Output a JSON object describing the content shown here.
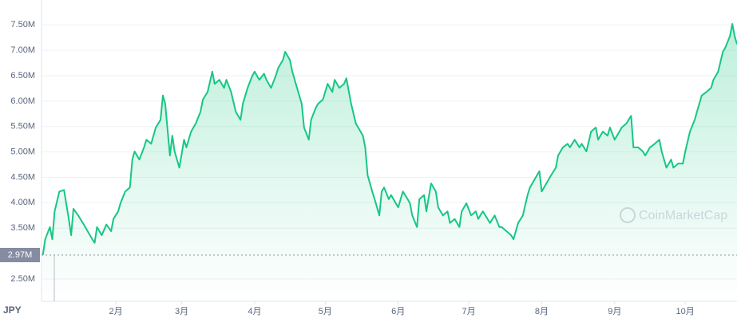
{
  "chart_data": {
    "type": "line",
    "currency": "JPY",
    "watermark": "CoinMarketCap",
    "reference": {
      "value": 2970000,
      "label": "2.97M"
    },
    "xlim": [
      0,
      295
    ],
    "xticks": [
      {
        "value": 31,
        "label": "2月"
      },
      {
        "value": 59,
        "label": "3月"
      },
      {
        "value": 90,
        "label": "4月"
      },
      {
        "value": 120,
        "label": "5月"
      },
      {
        "value": 151,
        "label": "6月"
      },
      {
        "value": 181,
        "label": "7月"
      },
      {
        "value": 212,
        "label": "8月"
      },
      {
        "value": 243,
        "label": "9月"
      },
      {
        "value": 273,
        "label": "10月"
      }
    ],
    "ylim": [
      2060000,
      7990000
    ],
    "yticks": [
      {
        "value": 2500000,
        "label": "2.50M"
      },
      {
        "value": 3500000,
        "label": "3.50M"
      },
      {
        "value": 4000000,
        "label": "4.00M"
      },
      {
        "value": 4500000,
        "label": "4.50M"
      },
      {
        "value": 5000000,
        "label": "5.00M"
      },
      {
        "value": 5500000,
        "label": "5.50M"
      },
      {
        "value": 6000000,
        "label": "6.00M"
      },
      {
        "value": 6500000,
        "label": "6.50M"
      },
      {
        "value": 7000000,
        "label": "7.00M"
      },
      {
        "value": 7500000,
        "label": "7.50M"
      }
    ],
    "grid": true,
    "color": "#16c784",
    "x": [
      0,
      1,
      3,
      4,
      5,
      7,
      9,
      11,
      12,
      13,
      15,
      17,
      19,
      21,
      22,
      23,
      25,
      27,
      29,
      30,
      32,
      33,
      35,
      37,
      38,
      39,
      41,
      43,
      44,
      46,
      48,
      50,
      51,
      52,
      54,
      55,
      56,
      58,
      60,
      61,
      63,
      65,
      67,
      68,
      70,
      72,
      73,
      75,
      77,
      78,
      80,
      82,
      84,
      85,
      87,
      89,
      90,
      92,
      94,
      95,
      97,
      99,
      100,
      102,
      103,
      105,
      106,
      108,
      110,
      111,
      113,
      114,
      116,
      117,
      119,
      121,
      123,
      124,
      126,
      128,
      129,
      131,
      133,
      134,
      136,
      137,
      138,
      140,
      141,
      143,
      144,
      145,
      147,
      148,
      150,
      151,
      153,
      155,
      156,
      157,
      159,
      160,
      162,
      163,
      165,
      167,
      168,
      170,
      172,
      173,
      175,
      177,
      178,
      180,
      182,
      184,
      185,
      187,
      189,
      190,
      192,
      194,
      195,
      197,
      199,
      200,
      202,
      204,
      206,
      207,
      209,
      211,
      212,
      214,
      216,
      218,
      219,
      221,
      223,
      224,
      226,
      228,
      229,
      231,
      233,
      235,
      236,
      238,
      240,
      241,
      243,
      245,
      246,
      248,
      250,
      251,
      253,
      255,
      256,
      258,
      260,
      262,
      263,
      265,
      267,
      268,
      270,
      272,
      273,
      275,
      277,
      278,
      280,
      282,
      284,
      285,
      287,
      289,
      290,
      292,
      293,
      294,
      295
    ],
    "values": [
      2970000,
      3280000,
      3520000,
      3280000,
      3830000,
      4220000,
      4250000,
      3680000,
      3360000,
      3880000,
      3750000,
      3600000,
      3440000,
      3280000,
      3210000,
      3520000,
      3360000,
      3570000,
      3440000,
      3680000,
      3830000,
      3990000,
      4220000,
      4300000,
      4850000,
      5010000,
      4850000,
      5090000,
      5240000,
      5160000,
      5480000,
      5630000,
      6110000,
      5950000,
      4930000,
      5320000,
      5010000,
      4690000,
      5240000,
      5090000,
      5400000,
      5560000,
      5790000,
      6030000,
      6180000,
      6580000,
      6340000,
      6420000,
      6260000,
      6420000,
      6180000,
      5790000,
      5630000,
      5950000,
      6260000,
      6500000,
      6580000,
      6420000,
      6540000,
      6420000,
      6260000,
      6500000,
      6650000,
      6810000,
      6970000,
      6810000,
      6580000,
      6260000,
      5950000,
      5480000,
      5240000,
      5630000,
      5870000,
      5950000,
      6030000,
      6340000,
      6180000,
      6420000,
      6260000,
      6340000,
      6450000,
      5950000,
      5560000,
      5480000,
      5320000,
      5090000,
      4540000,
      4220000,
      4070000,
      3750000,
      4220000,
      4300000,
      4070000,
      4150000,
      3990000,
      3910000,
      4220000,
      4070000,
      3990000,
      3750000,
      3520000,
      4070000,
      4150000,
      3830000,
      4380000,
      4220000,
      3910000,
      3750000,
      3830000,
      3600000,
      3680000,
      3520000,
      3830000,
      3990000,
      3750000,
      3830000,
      3680000,
      3830000,
      3680000,
      3600000,
      3750000,
      3520000,
      3520000,
      3440000,
      3360000,
      3280000,
      3600000,
      3750000,
      4150000,
      4300000,
      4460000,
      4620000,
      4220000,
      4380000,
      4540000,
      4690000,
      4930000,
      5090000,
      5160000,
      5090000,
      5240000,
      5090000,
      5160000,
      5010000,
      5400000,
      5480000,
      5240000,
      5400000,
      5320000,
      5480000,
      5240000,
      5400000,
      5480000,
      5560000,
      5710000,
      5090000,
      5090000,
      5010000,
      4930000,
      5090000,
      5160000,
      5240000,
      5010000,
      4690000,
      4850000,
      4690000,
      4770000,
      4770000,
      5010000,
      5400000,
      5630000,
      5790000,
      6110000,
      6180000,
      6260000,
      6420000,
      6580000,
      6970000,
      7050000,
      7280000,
      7520000,
      7280000,
      7120000
    ]
  }
}
